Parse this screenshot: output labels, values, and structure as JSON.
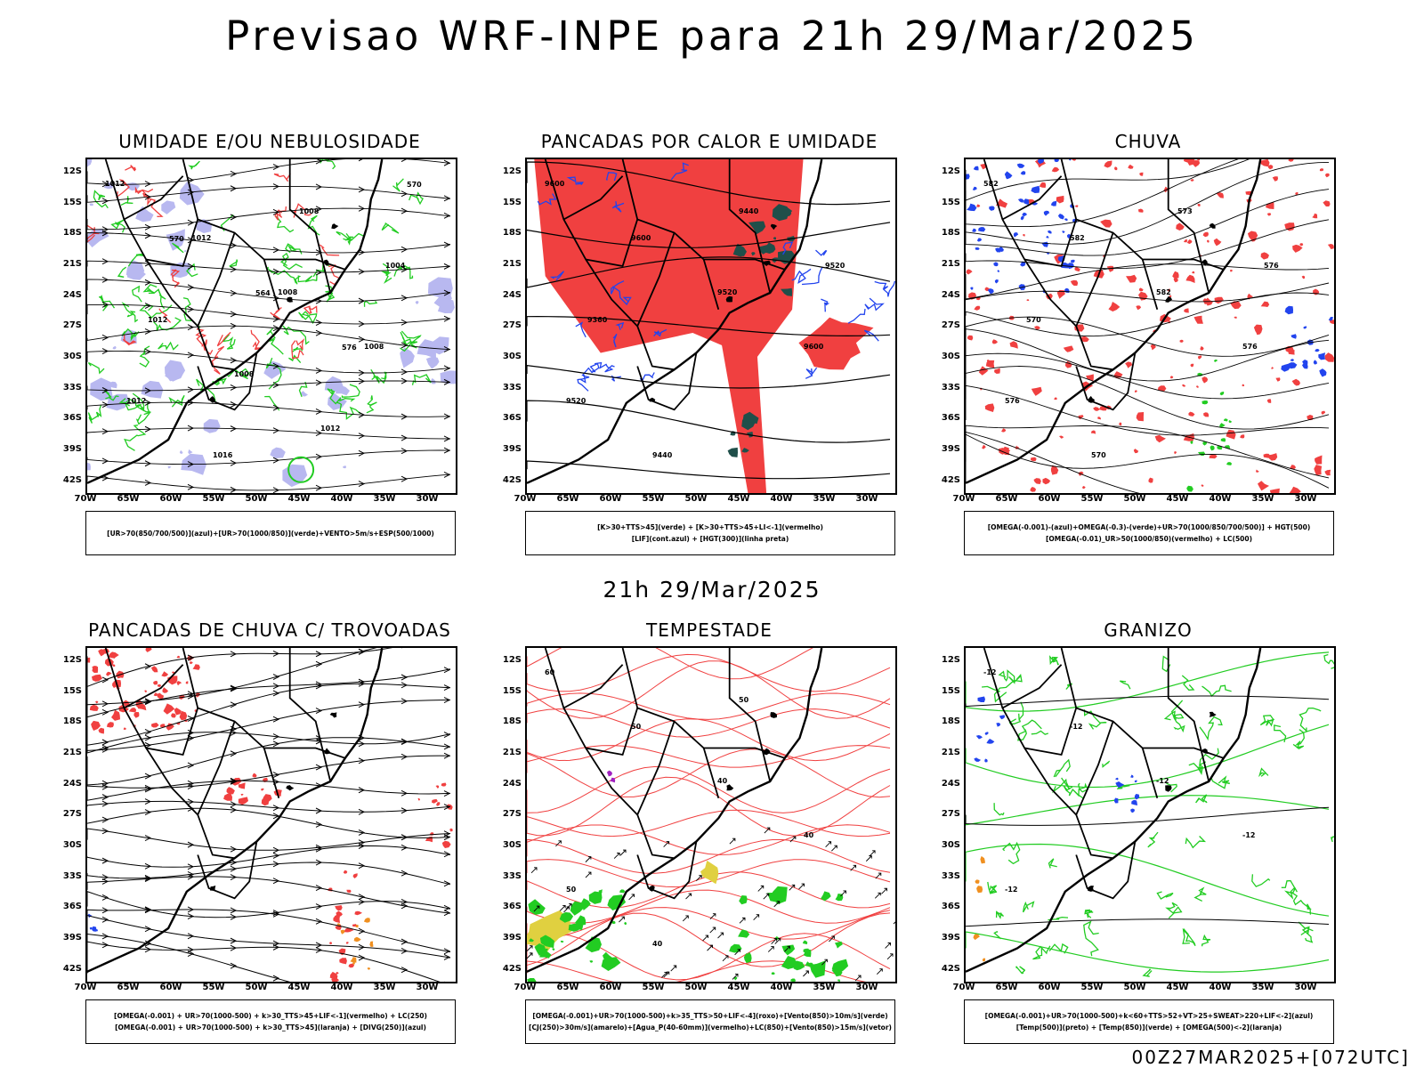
{
  "main_title": "Previsao WRF-INPE  para 21h 29/Mar/2025",
  "mid_date": "21h 29/Mar/2025",
  "run_label": "00Z27MAR2025+[072UTC]",
  "lat_ticks": [
    "12S",
    "15S",
    "18S",
    "21S",
    "24S",
    "27S",
    "30S",
    "33S",
    "36S",
    "39S",
    "42S"
  ],
  "lon_ticks": [
    "70W",
    "65W",
    "60W",
    "55W",
    "50W",
    "45W",
    "40W",
    "35W",
    "30W"
  ],
  "panels": [
    {
      "title": "UMIDADE E/OU NEBULOSIDADE",
      "legend": [
        "[UR>70(850/700/500)](azul)+[UR>70(1000/850)](verde)+VENTO>5m/s+ESP(500/1000)"
      ],
      "contour_labels": [
        "1012",
        "1012",
        "1008",
        "1008",
        "1012",
        "1016",
        "1008",
        "1004",
        "1012",
        "1008",
        "1012",
        "570",
        "570",
        "564",
        "576"
      ]
    },
    {
      "title": "PANCADAS POR CALOR E UMIDADE",
      "legend": [
        "[K>30+TTS>45](verde) + [K>30+TTS>45+LI<-1](vermelho)",
        "[LIF](cont.azul) + [HGT(300)](linha preta)"
      ],
      "contour_labels": [
        "9600",
        "9600",
        "9520",
        "9600",
        "9520",
        "9440",
        "9440",
        "9520",
        "9360"
      ]
    },
    {
      "title": "CHUVA",
      "legend": [
        "[OMEGA(-0.001)-(azul)+OMEGA(-0.3)-(verde)+UR>70(1000/850/700/500)] + HGT(500)",
        "[OMEGA(-0.01)_UR>50(1000/850)(vermelho) + LC(500)"
      ],
      "contour_labels": [
        "582",
        "582",
        "582",
        "576",
        "576",
        "570",
        "573",
        "576",
        "570"
      ]
    },
    {
      "title": "PANCADAS DE CHUVA C/ TROVOADAS",
      "legend": [
        "[OMEGA(-0.001) + UR>70(1000-500) + k>30_TTS>45+LIF<-1](vermelho) + LC(250)",
        "[OMEGA(-0.001) + UR>70(1000-500) + k>30_TTS>45](laranja) + [DIVG(250)](azul)"
      ],
      "contour_labels": []
    },
    {
      "title": "TEMPESTADE",
      "legend": [
        "[OMEGA(-0.001)+UR>70(1000-500)+k>35_TTS>50+LIF<-4](roxo)+[Vento(850)>10m/s](verde)",
        "[CJ(250)>30m/s](amarelo)+[Agua_P(40-60mm)](vermelho)+LC(850)+[Vento(850)>15m/s](vetor)"
      ],
      "contour_labels": [
        "60",
        "50",
        "40",
        "40",
        "50",
        "40",
        "50"
      ]
    },
    {
      "title": "GRANIZO",
      "legend": [
        "[OMEGA(-0.001)+UR>70(1000-500)+k<60+TTS>52+VT>25+SWEAT>220+LIF<-2](azul)",
        "[Temp(500)](preto) + [Temp(850)](verde) + [OMEGA(500)<-2](laranja)"
      ],
      "contour_labels": [
        "-12",
        "-12",
        "-12",
        "-12",
        "-12"
      ]
    }
  ],
  "colors": {
    "red": "#f04040",
    "green": "#22cc22",
    "blue": "#2244ee",
    "lavender": "#b8b8f0",
    "dark_teal": "#1f4f4a",
    "yellow": "#e0d040",
    "orange": "#f09020",
    "purple": "#a020c0"
  }
}
